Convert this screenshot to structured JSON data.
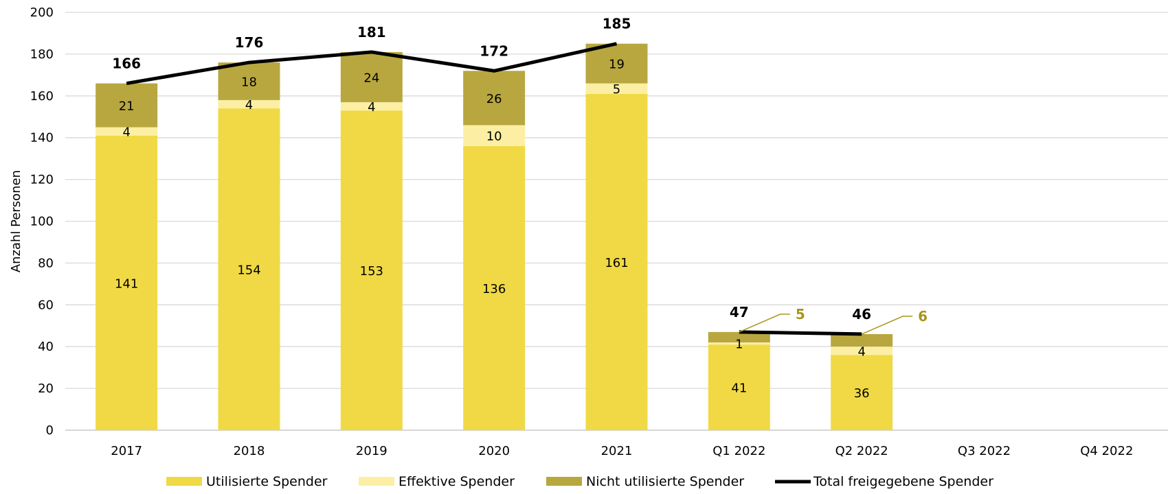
{
  "chart_data": {
    "type": "bar",
    "stacked": true,
    "categories": [
      "2017",
      "2018",
      "2019",
      "2020",
      "2021",
      "Q1 2022",
      "Q2 2022",
      "Q3 2022",
      "Q4 2022"
    ],
    "ylabel": "Anzahl Personen",
    "xlabel": "",
    "title": "",
    "ylim": [
      0,
      200
    ],
    "yticks": [
      0,
      20,
      40,
      60,
      80,
      100,
      120,
      140,
      160,
      180,
      200
    ],
    "grid": true,
    "legend_position": "bottom",
    "series": [
      {
        "name": "Utilisierte Spender",
        "type": "bar",
        "color": "#F0D944",
        "values": [
          141,
          154,
          153,
          136,
          161,
          41,
          36,
          null,
          null
        ]
      },
      {
        "name": "Effektive Spender",
        "type": "bar",
        "color": "#FCEFA4",
        "values": [
          4,
          4,
          4,
          10,
          5,
          1,
          4,
          null,
          null
        ]
      },
      {
        "name": "Nicht utilisierte Spender",
        "type": "bar",
        "color": "#B8A73F",
        "values": [
          21,
          18,
          24,
          26,
          19,
          5,
          6,
          null,
          null
        ]
      },
      {
        "name": "Total freigegebene Spender",
        "type": "line",
        "color": "#000000",
        "values": [
          166,
          176,
          181,
          172,
          185,
          47,
          46,
          null,
          null
        ]
      }
    ],
    "callouts": [
      {
        "category": "Q1 2022",
        "series": "Nicht utilisierte Spender",
        "text": "5",
        "color": "#A8951E"
      },
      {
        "category": "Q2 2022",
        "series": "Nicht utilisierte Spender",
        "text": "6",
        "color": "#A8951E"
      }
    ]
  }
}
